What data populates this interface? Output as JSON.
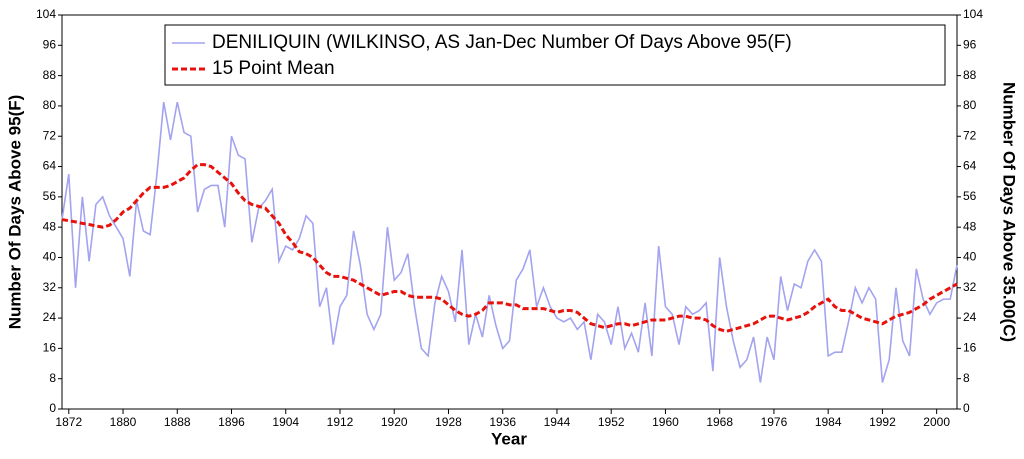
{
  "chart_data": {
    "type": "line",
    "legend_items": [
      "DENILIQUIN (WILKINSO, AS  Jan-Dec  Number Of Days Above 95(F)",
      "15 Point Mean"
    ],
    "xlabel": "Year",
    "ylabel": "Number Of Days Above 95(F)",
    "y2label": "Number Of Days Above 35.00(C)",
    "x": [
      1871,
      1872,
      1873,
      1874,
      1875,
      1876,
      1877,
      1878,
      1879,
      1880,
      1881,
      1882,
      1883,
      1884,
      1885,
      1886,
      1887,
      1888,
      1889,
      1890,
      1891,
      1892,
      1893,
      1894,
      1895,
      1896,
      1897,
      1898,
      1899,
      1900,
      1901,
      1902,
      1903,
      1904,
      1905,
      1906,
      1907,
      1908,
      1909,
      1910,
      1911,
      1912,
      1913,
      1914,
      1915,
      1916,
      1917,
      1918,
      1919,
      1920,
      1921,
      1922,
      1923,
      1924,
      1925,
      1926,
      1927,
      1928,
      1929,
      1930,
      1931,
      1932,
      1933,
      1934,
      1935,
      1936,
      1937,
      1938,
      1939,
      1940,
      1941,
      1942,
      1943,
      1944,
      1945,
      1946,
      1947,
      1948,
      1949,
      1950,
      1951,
      1952,
      1953,
      1954,
      1955,
      1956,
      1957,
      1958,
      1959,
      1960,
      1961,
      1962,
      1963,
      1964,
      1965,
      1966,
      1967,
      1968,
      1969,
      1970,
      1971,
      1972,
      1973,
      1974,
      1975,
      1976,
      1977,
      1978,
      1979,
      1980,
      1981,
      1982,
      1983,
      1984,
      1985,
      1986,
      1987,
      1988,
      1989,
      1990,
      1991,
      1992,
      1993,
      1994,
      1995,
      1996,
      1997,
      1998,
      1999,
      2000,
      2001,
      2002,
      2003
    ],
    "series": [
      {
        "name": "DENILIQUIN (WILKINSO, AS  Jan-Dec  Number Of Days Above 95(F)",
        "color": "#a3a3f0",
        "dash": false,
        "values": [
          50,
          62,
          32,
          56,
          39,
          54,
          56,
          51,
          48,
          45,
          35,
          55,
          47,
          46,
          62,
          81,
          71,
          81,
          73,
          72,
          52,
          58,
          59,
          59,
          48,
          72,
          67,
          66,
          44,
          53,
          55,
          58,
          39,
          43,
          42,
          45,
          51,
          49,
          27,
          32,
          17,
          27,
          30,
          47,
          38,
          25,
          21,
          25,
          48,
          34,
          36,
          41,
          27,
          16,
          14,
          28,
          35,
          31,
          23,
          42,
          17,
          25,
          19,
          30,
          22,
          16,
          18,
          34,
          37,
          42,
          27,
          32,
          27,
          24,
          23,
          24,
          21,
          23,
          13,
          25,
          23,
          17,
          27,
          16,
          20,
          15,
          28,
          14,
          43,
          27,
          25,
          17,
          27,
          25,
          26,
          28,
          10,
          40,
          27,
          18,
          11,
          13,
          19,
          7,
          19,
          13,
          35,
          26,
          33,
          32,
          39,
          42,
          39,
          14,
          15,
          15,
          23,
          32,
          28,
          32,
          29,
          7,
          13,
          32,
          18,
          14,
          37,
          29,
          25,
          28,
          29,
          29,
          38
        ]
      },
      {
        "name": "15 Point Mean",
        "color": "#e8120c",
        "dash": true,
        "values": [
          50,
          49.7,
          49.4,
          49,
          48.7,
          48.3,
          48,
          48.5,
          50,
          52,
          53,
          55,
          57,
          58.5,
          58.5,
          58.5,
          59,
          60,
          61,
          63,
          64.5,
          64.5,
          64,
          62.5,
          61,
          59.5,
          57,
          55,
          54,
          53.5,
          53,
          51,
          49,
          46,
          44,
          41.5,
          41,
          40,
          38,
          36,
          35,
          35,
          34.5,
          34,
          33,
          32,
          31,
          30,
          30.5,
          31,
          31,
          30,
          29.5,
          29.5,
          29.5,
          29.5,
          29,
          27.5,
          26,
          25,
          24.5,
          25,
          26,
          28,
          28,
          28,
          27.5,
          27.5,
          26.5,
          26.5,
          26.5,
          26.5,
          26,
          25.5,
          26,
          26,
          25.5,
          24,
          22.5,
          22,
          21.5,
          22,
          22.5,
          22.5,
          22,
          22.5,
          23,
          23.5,
          23.5,
          23.5,
          24,
          24.5,
          24.5,
          24,
          24,
          23.5,
          22,
          21,
          20.5,
          21,
          21.5,
          22,
          22.5,
          23.5,
          24.5,
          24.5,
          24,
          23.5,
          24,
          24.5,
          25.5,
          27,
          28,
          29,
          27,
          26,
          26,
          25,
          24,
          23.5,
          23,
          22.5,
          23.5,
          24.5,
          25,
          25.5,
          26.5,
          27.5,
          29,
          30,
          31,
          32,
          33
        ]
      }
    ],
    "xlim": [
      1871,
      2003
    ],
    "xticks": [
      1872,
      1880,
      1888,
      1896,
      1904,
      1912,
      1920,
      1928,
      1936,
      1944,
      1952,
      1960,
      1968,
      1976,
      1984,
      1992,
      2000
    ],
    "ylim": [
      0,
      104
    ],
    "yticks": [
      0,
      8,
      16,
      24,
      32,
      40,
      48,
      56,
      64,
      72,
      80,
      88,
      96,
      104
    ],
    "y2lim": [
      0,
      104
    ],
    "y2ticks": [
      0,
      8,
      16,
      24,
      32,
      40,
      48,
      56,
      64,
      72,
      80,
      88,
      96,
      104
    ]
  }
}
